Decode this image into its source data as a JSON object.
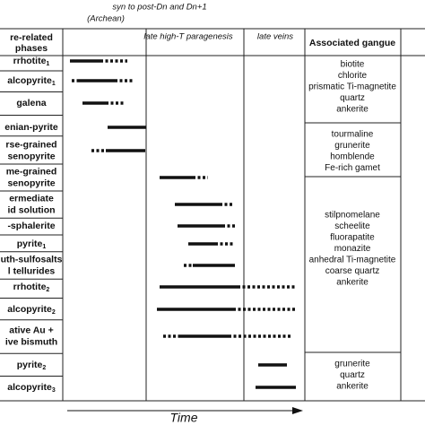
{
  "header": {
    "period1": "syn to post-Dn  and Dn+1",
    "period1_note": "(Archean)",
    "period2": "late high-T paragenesis",
    "period3": "late veins"
  },
  "columns": {
    "phases": [
      "re-related",
      "phases"
    ],
    "gangue": "Associated gangue"
  },
  "phases": [
    {
      "lines": [
        "rrhotite"
      ],
      "sub": "1"
    },
    {
      "lines": [
        "alcopyrite"
      ],
      "sub": "1"
    },
    {
      "lines": [
        "galena"
      ]
    },
    {
      "lines": [
        "enian-pyrite"
      ]
    },
    {
      "lines": [
        "rse-grained",
        "senopyrite"
      ]
    },
    {
      "lines": [
        "me-grained",
        "senopyrite"
      ]
    },
    {
      "lines": [
        "ermediate",
        "id solution"
      ]
    },
    {
      "lines": [
        "-sphalerite"
      ]
    },
    {
      "lines": [
        "pyrite"
      ],
      "sub": "1"
    },
    {
      "lines": [
        "uth-sulfosalts",
        "l tellurides"
      ]
    },
    {
      "lines": [
        "rrhotite"
      ],
      "sub": "2"
    },
    {
      "lines": [
        "alcopyrite"
      ],
      "sub": "2"
    },
    {
      "lines": [
        "ative Au +",
        "ive bismuth"
      ]
    },
    {
      "lines": [
        "pyrite"
      ],
      "sub": "2"
    },
    {
      "lines": [
        "alcopyrite"
      ],
      "sub": "3"
    }
  ],
  "gangue_groups": [
    [
      "biotite",
      "chlorite",
      "prismatic Ti-magnetite",
      "quartz",
      "ankerite"
    ],
    [
      "tourmaline",
      "grunerite",
      "homblende",
      "Fe-rich gamet"
    ],
    [
      "stilpnomelane",
      "scheelite",
      "fluorapatite",
      "monazite",
      "anhedral Ti-magnetite",
      "coarse quartz",
      "ankerite"
    ],
    [
      "grunerite",
      "quartz",
      "ankerite"
    ]
  ],
  "axis": {
    "label": "Time"
  }
}
